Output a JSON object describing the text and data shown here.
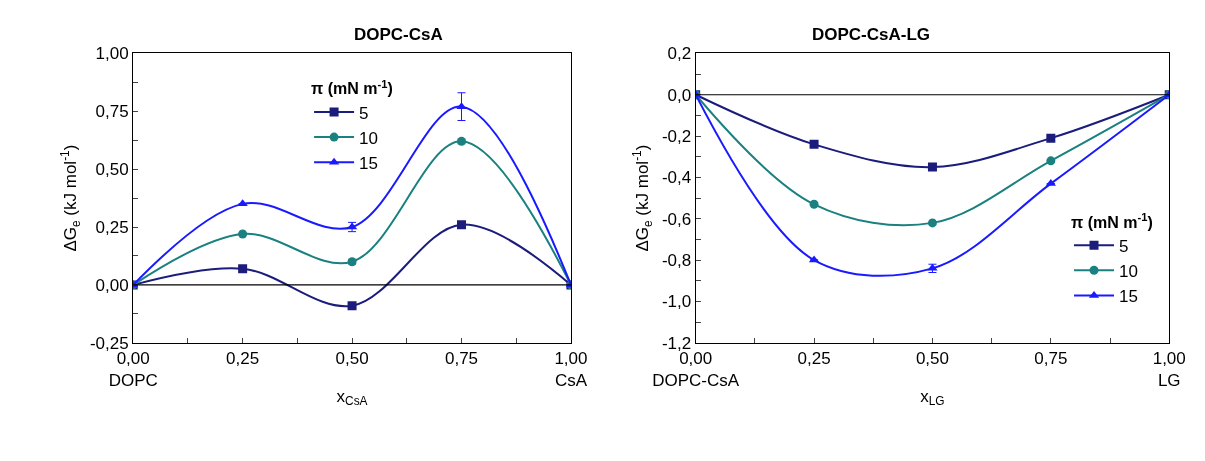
{
  "chart_data": [
    {
      "type": "line",
      "title": "DOPC-CsA",
      "xlabel": "x$_{CsA}$",
      "ylabel": "ΔG$_{e}$ (kJ mol$^{-1}$)",
      "legend_title": "π (mN m$^{-1}$)",
      "legend": "top",
      "line_style": "solid",
      "x": [
        0,
        0.25,
        0.5,
        0.75,
        1
      ],
      "xlim": [
        0,
        1
      ],
      "xticks": [
        {
          "value": 0,
          "label": "0,00\nDOPC"
        },
        {
          "value": 0.125,
          "label": null
        },
        {
          "value": 0.25,
          "label": "0,25"
        },
        {
          "value": 0.375,
          "label": null
        },
        {
          "value": 0.5,
          "label": "0,50"
        },
        {
          "value": 0.625,
          "label": null
        },
        {
          "value": 0.75,
          "label": "0,75"
        },
        {
          "value": 0.875,
          "label": null
        },
        {
          "value": 1,
          "label": "1,00\nCsA"
        }
      ],
      "ylim": [
        -0.25,
        1.0
      ],
      "yticks": [
        {
          "value": -0.25,
          "label": "-0,25"
        },
        {
          "value": -0.125,
          "label": null
        },
        {
          "value": 0,
          "label": "0,00"
        },
        {
          "value": 0.125,
          "label": null
        },
        {
          "value": 0.25,
          "label": "0,25"
        },
        {
          "value": 0.375,
          "label": null
        },
        {
          "value": 0.5,
          "label": "0,50"
        },
        {
          "value": 0.625,
          "label": null
        },
        {
          "value": 0.75,
          "label": "0,75"
        },
        {
          "value": 0.875,
          "label": null
        },
        {
          "value": 1.0,
          "label": "1,00"
        }
      ],
      "ref_lines": [
        {
          "axis": "y",
          "value": 0,
          "color": "#000000"
        }
      ],
      "series": [
        {
          "name": "5",
          "color": "#1c1c7c",
          "marker": "square",
          "values": [
            0,
            0.07,
            -0.09,
            0.26,
            0
          ],
          "errors": [
            null,
            null,
            0.01,
            null,
            null
          ]
        },
        {
          "name": "10",
          "color": "#1a8080",
          "marker": "circle",
          "values": [
            0,
            0.22,
            0.1,
            0.62,
            0
          ],
          "errors": [
            null,
            null,
            0.01,
            0.01,
            null
          ]
        },
        {
          "name": "15",
          "color": "#1a1aff",
          "marker": "triangle",
          "values": [
            0,
            0.35,
            0.25,
            0.77,
            0
          ],
          "errors": [
            null,
            null,
            0.02,
            0.06,
            null
          ]
        }
      ]
    },
    {
      "type": "line",
      "title": "DOPC-CsA-LG",
      "xlabel": "x$_{LG}$",
      "ylabel": "ΔG$_{e}$ (kJ mol$^{-1}$)",
      "legend_title": "π (mN m$^{-1}$)",
      "legend": "bottom right",
      "line_style": "solid",
      "x": [
        0,
        0.25,
        0.5,
        0.75,
        1
      ],
      "xlim": [
        0,
        1
      ],
      "xticks": [
        {
          "value": 0,
          "label": "0,00\nDOPC-CsA"
        },
        {
          "value": 0.125,
          "label": null
        },
        {
          "value": 0.25,
          "label": "0,25"
        },
        {
          "value": 0.375,
          "label": null
        },
        {
          "value": 0.5,
          "label": "0,50"
        },
        {
          "value": 0.625,
          "label": null
        },
        {
          "value": 0.75,
          "label": "0,75"
        },
        {
          "value": 0.875,
          "label": null
        },
        {
          "value": 1,
          "label": "1,00\nLG"
        }
      ],
      "ylim": [
        -1.2,
        0.2
      ],
      "yticks": [
        {
          "value": -1.2,
          "label": "-1,2"
        },
        {
          "value": -1.1,
          "label": null
        },
        {
          "value": -1.0,
          "label": "-1,0"
        },
        {
          "value": -0.9,
          "label": null
        },
        {
          "value": -0.8,
          "label": "-0,8"
        },
        {
          "value": -0.7,
          "label": null
        },
        {
          "value": -0.6,
          "label": "-0,6"
        },
        {
          "value": -0.5,
          "label": null
        },
        {
          "value": -0.4,
          "label": "-0,4"
        },
        {
          "value": -0.3,
          "label": null
        },
        {
          "value": -0.2,
          "label": "-0,2"
        },
        {
          "value": -0.1,
          "label": null
        },
        {
          "value": 0,
          "label": "0,0"
        },
        {
          "value": 0.1,
          "label": null
        },
        {
          "value": 0.2,
          "label": "0,2"
        }
      ],
      "ref_lines": [
        {
          "axis": "y",
          "value": 0,
          "color": "#000000"
        }
      ],
      "series": [
        {
          "name": "5",
          "color": "#1c1c7c",
          "marker": "square",
          "values": [
            0,
            -0.24,
            -0.35,
            -0.21,
            0
          ]
        },
        {
          "name": "10",
          "color": "#1a8080",
          "marker": "circle",
          "values": [
            0,
            -0.53,
            -0.62,
            -0.32,
            0
          ]
        },
        {
          "name": "15",
          "color": "#1a1aff",
          "marker": "triangle",
          "values": [
            0,
            -0.8,
            -0.84,
            -0.43,
            0
          ],
          "errors": [
            null,
            null,
            0.02,
            null,
            null
          ]
        }
      ]
    }
  ]
}
